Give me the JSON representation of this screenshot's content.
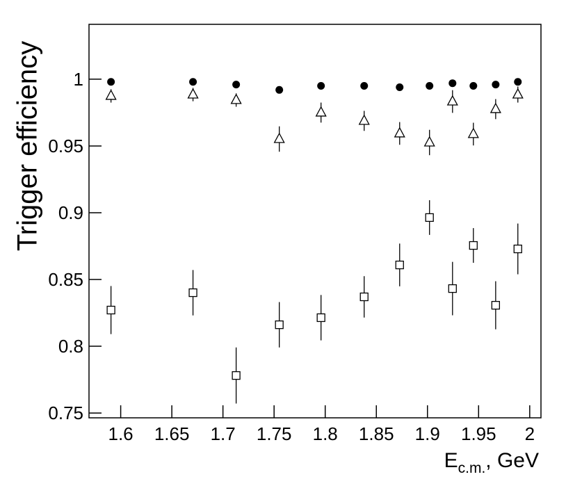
{
  "chart_data": {
    "type": "scatter",
    "y_label": "Trigger efficiency",
    "x_label": {
      "main": "E",
      "sub": "c.m.",
      "rest": ", GeV"
    },
    "x": [
      1.5905,
      1.6707,
      1.7129,
      1.7551,
      1.7959,
      1.8381,
      1.8728,
      1.902,
      1.9245,
      1.9449,
      1.9667,
      1.9884
    ],
    "series": [
      {
        "marker": "circle",
        "color": "#000000",
        "values": [
          0.998,
          0.998,
          0.996,
          0.992,
          0.995,
          0.995,
          0.994,
          0.995,
          0.997,
          0.995,
          0.996,
          0.998
        ]
      },
      {
        "marker": "triangle",
        "color": "#000000",
        "values": [
          0.9875,
          0.9885,
          0.9844,
          0.9552,
          0.975,
          0.9688,
          0.9594,
          0.9526,
          0.9833,
          0.9589,
          0.9776,
          0.9885
        ],
        "errors": [
          0.005,
          0.005,
          0.005,
          0.0095,
          0.0075,
          0.0075,
          0.0085,
          0.0095,
          0.0085,
          0.0085,
          0.0075,
          0.006
        ]
      },
      {
        "marker": "square",
        "color": "#000000",
        "values": [
          0.8271,
          0.8401,
          0.7781,
          0.8161,
          0.8214,
          0.837,
          0.8609,
          0.8964,
          0.8432,
          0.8755,
          0.8307,
          0.8729
        ],
        "errors": [
          0.018,
          0.017,
          0.021,
          0.017,
          0.017,
          0.0155,
          0.016,
          0.013,
          0.02,
          0.013,
          0.018,
          0.019
        ]
      }
    ],
    "xlim": [
      1.569,
      2.011
    ],
    "ylim": [
      0.7464,
      1.0411
    ],
    "xticks": [
      1.6,
      1.65,
      1.7,
      1.75,
      1.8,
      1.85,
      1.9,
      1.95,
      2
    ],
    "yticks": [
      0.75,
      0.8,
      0.85,
      0.9,
      0.95,
      1
    ],
    "grid": false
  }
}
